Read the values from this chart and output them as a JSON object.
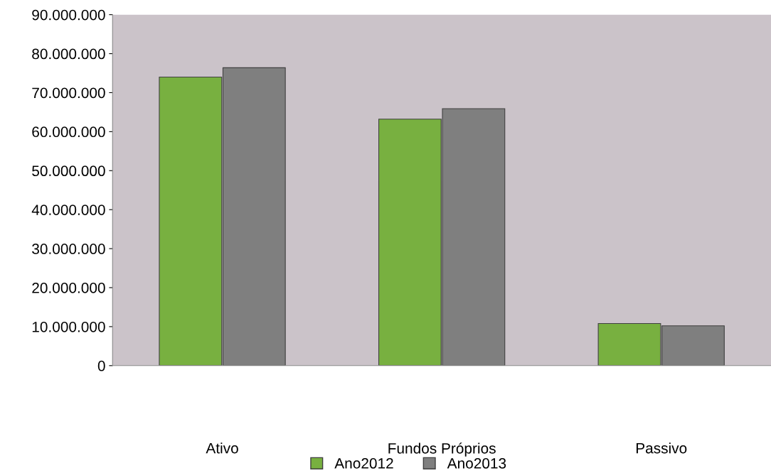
{
  "chart_data": {
    "type": "bar",
    "categories": [
      "Ativo",
      "Fundos Próprios",
      "Passivo"
    ],
    "series": [
      {
        "name": "Ano2012",
        "color": "#78b040",
        "values": [
          74000000,
          63200000,
          10800000
        ]
      },
      {
        "name": "Ano2013",
        "color": "#7f7f7f",
        "values": [
          76400000,
          65900000,
          10200000
        ]
      }
    ],
    "ylim": [
      0,
      90000000
    ],
    "yticks": [
      {
        "value": 0,
        "label": "0"
      },
      {
        "value": 10000000,
        "label": "10.000.000"
      },
      {
        "value": 20000000,
        "label": "20.000.000"
      },
      {
        "value": 30000000,
        "label": "30.000.000"
      },
      {
        "value": 40000000,
        "label": "40.000.000"
      },
      {
        "value": 50000000,
        "label": "50.000.000"
      },
      {
        "value": 60000000,
        "label": "60.000.000"
      },
      {
        "value": 70000000,
        "label": "70.000.000"
      },
      {
        "value": 80000000,
        "label": "80.000.000"
      },
      {
        "value": 90000000,
        "label": "90.000.000"
      }
    ],
    "grid": false,
    "legend": "bottom"
  }
}
